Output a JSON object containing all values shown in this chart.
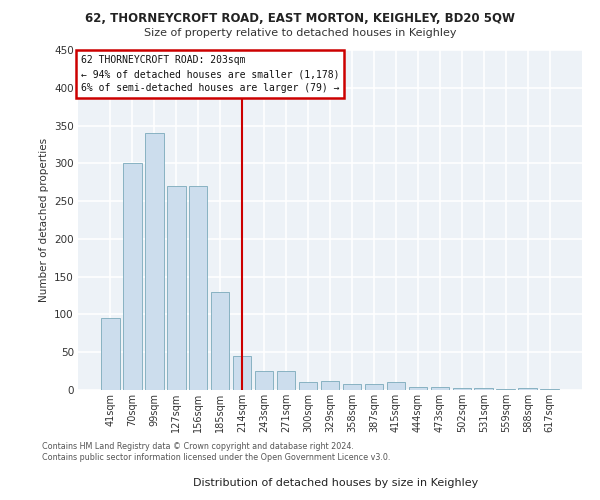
{
  "title_line1": "62, THORNEYCROFT ROAD, EAST MORTON, KEIGHLEY, BD20 5QW",
  "title_line2": "Size of property relative to detached houses in Keighley",
  "xlabel": "Distribution of detached houses by size in Keighley",
  "ylabel": "Number of detached properties",
  "footer_line1": "Contains HM Land Registry data © Crown copyright and database right 2024.",
  "footer_line2": "Contains public sector information licensed under the Open Government Licence v3.0.",
  "categories": [
    "41sqm",
    "70sqm",
    "99sqm",
    "127sqm",
    "156sqm",
    "185sqm",
    "214sqm",
    "243sqm",
    "271sqm",
    "300sqm",
    "329sqm",
    "358sqm",
    "387sqm",
    "415sqm",
    "444sqm",
    "473sqm",
    "502sqm",
    "531sqm",
    "559sqm",
    "588sqm",
    "617sqm"
  ],
  "values": [
    95,
    300,
    340,
    270,
    270,
    130,
    45,
    25,
    25,
    10,
    12,
    8,
    8,
    10,
    4,
    4,
    3,
    2,
    1,
    2,
    1
  ],
  "highlight_index": 6,
  "highlight_label": "62 THORNEYCROFT ROAD: 203sqm",
  "annotation_line1": "← 94% of detached houses are smaller (1,178)",
  "annotation_line2": "6% of semi-detached houses are larger (79) →",
  "bar_color": "#ccdded",
  "bar_edge_color": "#7aaabb",
  "highlight_line_color": "#cc0000",
  "annotation_box_color": "#cc0000",
  "bg_color": "#edf2f7",
  "ylim": [
    0,
    450
  ],
  "yticks": [
    0,
    50,
    100,
    150,
    200,
    250,
    300,
    350,
    400,
    450
  ]
}
